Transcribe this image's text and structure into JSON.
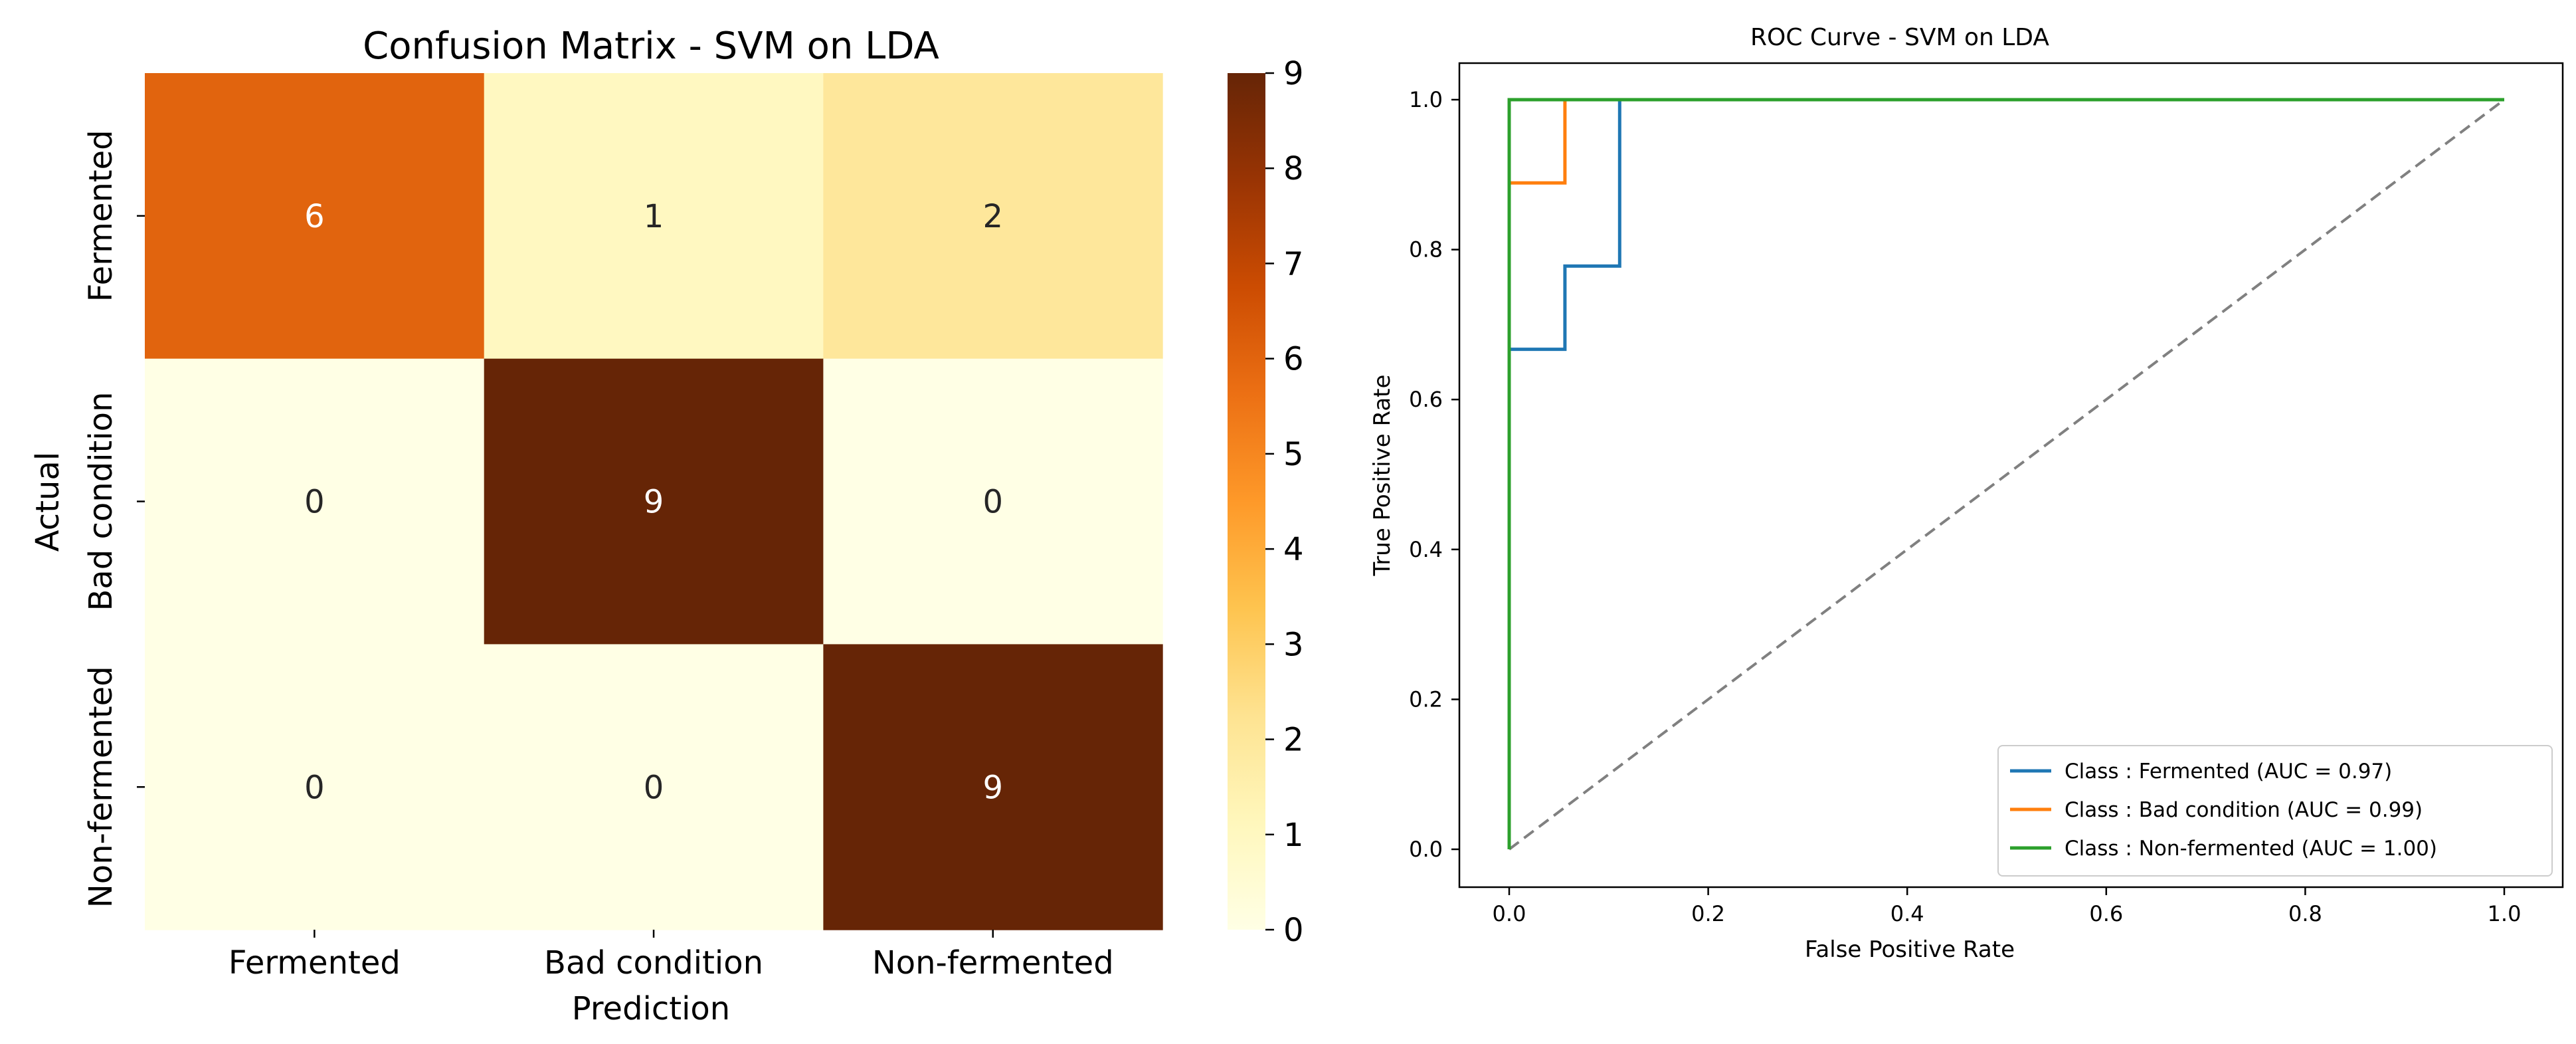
{
  "chart_data": [
    {
      "type": "heatmap",
      "title": "Confusion Matrix - SVM on LDA",
      "xlabel": "Prediction",
      "ylabel": "Actual",
      "x_categories": [
        "Fermented",
        "Bad condition",
        "Non-fermented"
      ],
      "y_categories": [
        "Fermented",
        "Bad condition",
        "Non-fermented"
      ],
      "values": [
        [
          6,
          1,
          2
        ],
        [
          0,
          9,
          0
        ],
        [
          0,
          0,
          9
        ]
      ],
      "colorbar": {
        "min": 0,
        "max": 9,
        "ticks": [
          0,
          1,
          2,
          3,
          4,
          5,
          6,
          7,
          8,
          9
        ],
        "colormap": "YlOrBr"
      }
    },
    {
      "type": "line",
      "title": "ROC Curve - SVM on LDA",
      "xlabel": "False Positive Rate",
      "ylabel": "True Positive Rate",
      "xlim": [
        0,
        1
      ],
      "ylim": [
        0,
        1
      ],
      "xticks": [
        "0.0",
        "0.2",
        "0.4",
        "0.6",
        "0.8",
        "1.0"
      ],
      "yticks": [
        "0.0",
        "0.2",
        "0.4",
        "0.6",
        "0.8",
        "1.0"
      ],
      "legend_position": "bottom-right",
      "series": [
        {
          "name": "Class : Fermented (AUC = 0.97)",
          "color": "#1f77b4",
          "points": [
            [
              0,
              0
            ],
            [
              0,
              0.667
            ],
            [
              0.056,
              0.667
            ],
            [
              0.056,
              0.778
            ],
            [
              0.111,
              0.778
            ],
            [
              0.111,
              1.0
            ],
            [
              1.0,
              1.0
            ]
          ]
        },
        {
          "name": "Class : Bad condition (AUC = 0.99)",
          "color": "#ff7f0e",
          "points": [
            [
              0,
              0
            ],
            [
              0,
              0.889
            ],
            [
              0.056,
              0.889
            ],
            [
              0.056,
              1.0
            ],
            [
              1.0,
              1.0
            ]
          ]
        },
        {
          "name": "Class : Non-fermented (AUC = 1.00)",
          "color": "#2ca02c",
          "points": [
            [
              0,
              0
            ],
            [
              0,
              1.0
            ],
            [
              1.0,
              1.0
            ]
          ]
        }
      ],
      "reference_line": {
        "points": [
          [
            0,
            0
          ],
          [
            1,
            1
          ]
        ],
        "color": "#808080",
        "style": "dashed"
      }
    }
  ]
}
